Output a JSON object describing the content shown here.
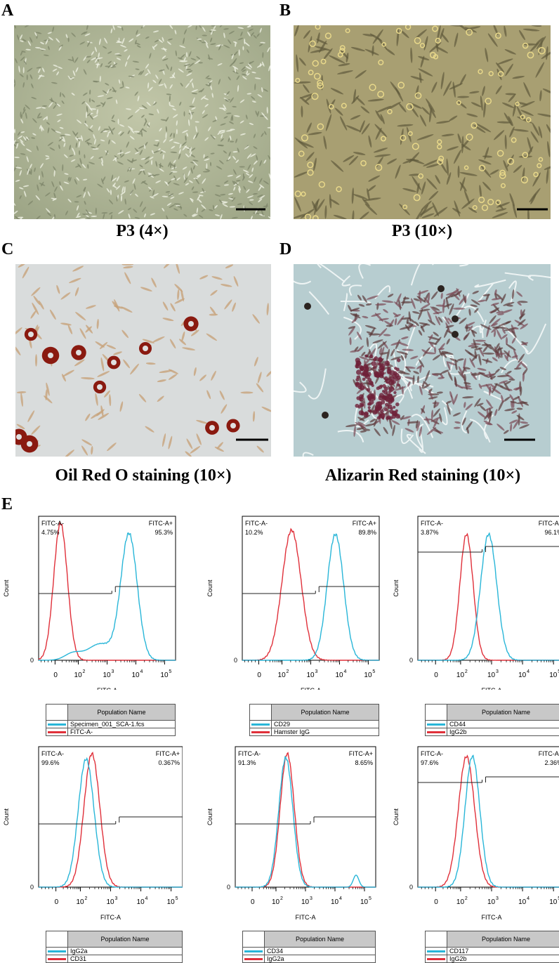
{
  "panels": {
    "A": {
      "label": "A",
      "caption": "P3 (4×)"
    },
    "B": {
      "label": "B",
      "caption": "P3 (10×)"
    },
    "C": {
      "label": "C",
      "caption": "Oil Red O staining (10×)"
    },
    "D": {
      "label": "D",
      "caption": "Alizarin Red staining (10×)"
    },
    "E": {
      "label": "E"
    }
  },
  "colors": {
    "sample": "#29b6d8",
    "control": "#e0303a"
  },
  "flow": {
    "header": "Population Name",
    "axis_label": "FITC-A",
    "count_label": "Count",
    "zero_label": "0",
    "neg_label": "FITC-A-",
    "pos_label": "FITC-A+",
    "plots": [
      {
        "neg_pct": "4.75%",
        "pos_pct": "95.3%",
        "legend": [
          "Specimen_001_SCA-1.fcs",
          "FITC-A-"
        ]
      },
      {
        "neg_pct": "10.2%",
        "pos_pct": "89.8%",
        "legend": [
          "CD29",
          "Hamster IgG"
        ]
      },
      {
        "neg_pct": "3.87%",
        "pos_pct": "96.1%",
        "legend": [
          "CD44",
          "IgG2b"
        ]
      },
      {
        "neg_pct": "99.6%",
        "pos_pct": "0.367%",
        "legend": [
          "IgG2a",
          "CD31"
        ]
      },
      {
        "neg_pct": "91.3%",
        "pos_pct": "8.65%",
        "legend": [
          "CD34",
          "IgG2a"
        ]
      },
      {
        "neg_pct": "97.6%",
        "pos_pct": "2.36%",
        "legend": [
          "CD117",
          "IgG2b"
        ]
      }
    ]
  }
}
